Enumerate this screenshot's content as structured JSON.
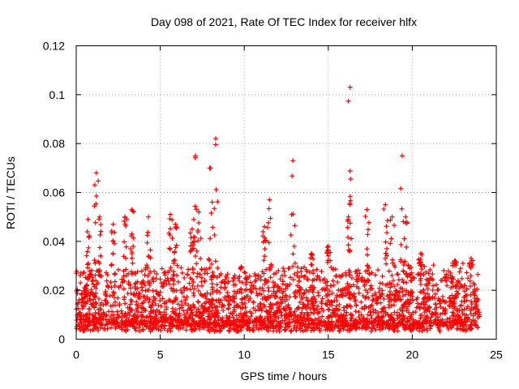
{
  "chart_data": {
    "type": "scatter",
    "title": "Day 098 of 2021, Rate Of TEC Index for receiver hlfx",
    "xlabel": "GPS time / hours",
    "ylabel": "ROTI / TECUs",
    "xlim": [
      0,
      25
    ],
    "ylim": [
      0,
      0.12
    ],
    "grid": true,
    "marker": "plus",
    "series_color": "#ff0000",
    "x_ticks": [
      {
        "value": 0,
        "label": "0"
      },
      {
        "value": 5,
        "label": "5"
      },
      {
        "value": 10,
        "label": "10"
      },
      {
        "value": 15,
        "label": "15"
      },
      {
        "value": 20,
        "label": "20"
      },
      {
        "value": 25,
        "label": "25"
      }
    ],
    "y_ticks": [
      {
        "value": 0,
        "label": "0"
      },
      {
        "value": 0.02,
        "label": "0.02"
      },
      {
        "value": 0.04,
        "label": "0.04"
      },
      {
        "value": 0.06,
        "label": "0.06"
      },
      {
        "value": 0.08,
        "label": "0.08"
      },
      {
        "value": 0.1,
        "label": "0.1"
      },
      {
        "value": 0.12,
        "label": "0.12"
      }
    ],
    "data_extent_hours": [
      0,
      24
    ],
    "baseline_range": [
      0.003,
      0.03
    ],
    "spikes": [
      {
        "x": 0.7,
        "y": 0.049
      },
      {
        "x": 1.2,
        "y": 0.068
      },
      {
        "x": 1.4,
        "y": 0.05
      },
      {
        "x": 2.2,
        "y": 0.047
      },
      {
        "x": 2.9,
        "y": 0.05
      },
      {
        "x": 3.3,
        "y": 0.053
      },
      {
        "x": 4.3,
        "y": 0.05
      },
      {
        "x": 5.6,
        "y": 0.051
      },
      {
        "x": 5.9,
        "y": 0.047
      },
      {
        "x": 6.9,
        "y": 0.045
      },
      {
        "x": 7.1,
        "y": 0.075
      },
      {
        "x": 7.3,
        "y": 0.052
      },
      {
        "x": 8.0,
        "y": 0.07
      },
      {
        "x": 8.3,
        "y": 0.082
      },
      {
        "x": 11.2,
        "y": 0.046
      },
      {
        "x": 11.5,
        "y": 0.057
      },
      {
        "x": 12.9,
        "y": 0.073
      },
      {
        "x": 14.0,
        "y": 0.035
      },
      {
        "x": 15.0,
        "y": 0.038
      },
      {
        "x": 16.2,
        "y": 0.05
      },
      {
        "x": 16.3,
        "y": 0.103
      },
      {
        "x": 17.3,
        "y": 0.053
      },
      {
        "x": 18.4,
        "y": 0.055
      },
      {
        "x": 18.8,
        "y": 0.05
      },
      {
        "x": 19.4,
        "y": 0.075
      },
      {
        "x": 19.6,
        "y": 0.05
      },
      {
        "x": 20.5,
        "y": 0.035
      },
      {
        "x": 22.5,
        "y": 0.032
      },
      {
        "x": 23.5,
        "y": 0.033
      }
    ]
  }
}
